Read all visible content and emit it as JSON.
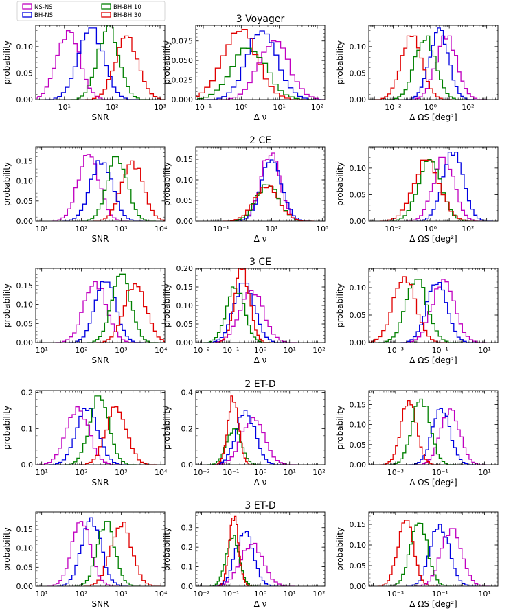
{
  "figure": {
    "row_titles": [
      "3 Voyager",
      "2 CE",
      "3 CE",
      "2 ET-D",
      "3 ET-D"
    ],
    "column_xlabels": [
      "SNR",
      "Δ ν",
      "Δ ΩS [deg²]"
    ],
    "ylabel": "probability",
    "legend": [
      {
        "name": "NS-NS",
        "color": "#c000c0"
      },
      {
        "name": "BH-NS",
        "color": "#0000e0"
      },
      {
        "name": "BH-BH 10",
        "color": "#008000"
      },
      {
        "name": "BH-BH 30",
        "color": "#e00000"
      }
    ]
  },
  "chart_data": [
    {
      "type": "histogram",
      "row": "3 Voyager",
      "xlabel": "SNR",
      "ylabel": "probability",
      "xscale": "log",
      "xlim_log10": [
        0.4,
        3.1
      ],
      "xticks_log10": [
        1,
        2,
        3
      ],
      "xtick_labels": [
        "10¹",
        "10²",
        "10³"
      ],
      "ylim": [
        0,
        0.14
      ],
      "yticks": [
        0,
        0.05,
        0.1
      ],
      "ytick_labels": [
        "0.00",
        "0.05",
        "0.10"
      ],
      "series": [
        {
          "name": "NS-NS",
          "center": 1.08,
          "width": 0.24,
          "peak": 0.13
        },
        {
          "name": "BH-NS",
          "center": 1.55,
          "width": 0.26,
          "peak": 0.135
        },
        {
          "name": "BH-BH 10",
          "center": 1.92,
          "width": 0.22,
          "peak": 0.14
        },
        {
          "name": "BH-BH 30",
          "center": 2.3,
          "width": 0.24,
          "peak": 0.12
        }
      ]
    },
    {
      "type": "histogram",
      "row": "3 Voyager",
      "xlabel": "Δ ν",
      "ylabel": "probability",
      "xscale": "log",
      "xlim_log10": [
        -1.2,
        2.2
      ],
      "xticks_log10": [
        -1,
        0,
        1,
        2
      ],
      "xtick_labels": [
        "10⁻¹",
        "10⁰",
        "10¹",
        "10²"
      ],
      "ylim": [
        0,
        0.095
      ],
      "yticks": [
        0,
        0.025,
        0.05,
        0.075
      ],
      "ytick_labels": [
        "0.000",
        "0.025",
        "0.050",
        "0.075"
      ],
      "series": [
        {
          "name": "NS-NS",
          "center": 0.85,
          "width": 0.4,
          "peak": 0.075
        },
        {
          "name": "BH-NS",
          "center": 0.55,
          "width": 0.4,
          "peak": 0.088
        },
        {
          "name": "BH-BH 10",
          "center": 0.2,
          "width": 0.45,
          "peak": 0.07
        },
        {
          "name": "BH-BH 30",
          "center": -0.05,
          "width": 0.45,
          "peak": 0.09
        }
      ]
    },
    {
      "type": "histogram",
      "row": "3 Voyager",
      "xlabel": "Δ ΩS [deg²]",
      "ylabel": "probability",
      "xscale": "log",
      "xlim_log10": [
        -3.3,
        3.6
      ],
      "xticks_log10": [
        -2,
        0,
        2
      ],
      "xtick_labels": [
        "10⁻²",
        "10⁰",
        "10²"
      ],
      "ylim": [
        0,
        0.14
      ],
      "yticks": [
        0,
        0.05,
        0.1
      ],
      "ytick_labels": [
        "0.00",
        "0.05",
        "0.10"
      ],
      "series": [
        {
          "name": "NS-NS",
          "center": 0.85,
          "width": 0.55,
          "peak": 0.12
        },
        {
          "name": "BH-NS",
          "center": 0.45,
          "width": 0.5,
          "peak": 0.135
        },
        {
          "name": "BH-BH 10",
          "center": -0.3,
          "width": 0.55,
          "peak": 0.12
        },
        {
          "name": "BH-BH 30",
          "center": -1.0,
          "width": 0.55,
          "peak": 0.12
        }
      ]
    },
    {
      "type": "histogram",
      "row": "2 CE",
      "xlabel": "SNR",
      "ylabel": "probability",
      "xscale": "log",
      "xlim_log10": [
        0.85,
        4.1
      ],
      "xticks_log10": [
        1,
        2,
        3,
        4
      ],
      "xtick_labels": [
        "10¹",
        "10²",
        "10³",
        "10⁴"
      ],
      "ylim": [
        0,
        0.185
      ],
      "yticks": [
        0,
        0.05,
        0.1,
        0.15
      ],
      "ytick_labels": [
        "0.00",
        "0.05",
        "0.10",
        "0.15"
      ],
      "series": [
        {
          "name": "NS-NS",
          "center": 2.18,
          "width": 0.26,
          "peak": 0.17
        },
        {
          "name": "BH-NS",
          "center": 2.5,
          "width": 0.27,
          "peak": 0.155
        },
        {
          "name": "BH-BH 10",
          "center": 2.9,
          "width": 0.25,
          "peak": 0.16
        },
        {
          "name": "BH-BH 30",
          "center": 3.28,
          "width": 0.27,
          "peak": 0.15
        }
      ]
    },
    {
      "type": "histogram",
      "row": "2 CE",
      "xlabel": "Δ ν",
      "ylabel": "probability",
      "xscale": "log",
      "xlim_log10": [
        -2.0,
        3.1
      ],
      "xticks_log10": [
        -1,
        1,
        3
      ],
      "xtick_labels": [
        "10⁻¹",
        "10¹",
        "10³"
      ],
      "ylim": [
        0,
        0.18
      ],
      "yticks": [
        0,
        0.05,
        0.1,
        0.15
      ],
      "ytick_labels": [
        "0.00",
        "0.05",
        "0.10",
        "0.15"
      ],
      "series": [
        {
          "name": "NS-NS",
          "center": 0.95,
          "width": 0.38,
          "peak": 0.165
        },
        {
          "name": "BH-NS",
          "center": 1.0,
          "width": 0.4,
          "peak": 0.15
        },
        {
          "name": "BH-BH 10",
          "center": 0.85,
          "width": 0.45,
          "peak": 0.09
        },
        {
          "name": "BH-BH 30",
          "center": 0.8,
          "width": 0.48,
          "peak": 0.085
        }
      ]
    },
    {
      "type": "histogram",
      "row": "2 CE",
      "xlabel": "Δ ΩS [deg²]",
      "ylabel": "probability",
      "xscale": "log",
      "xlim_log10": [
        -3.3,
        3.6
      ],
      "xticks_log10": [
        -2,
        0,
        2
      ],
      "xtick_labels": [
        "10⁻²",
        "10⁰",
        "10²"
      ],
      "ylim": [
        0,
        0.14
      ],
      "yticks": [
        0,
        0.05,
        0.1
      ],
      "ytick_labels": [
        "0.00",
        "0.05",
        "0.10"
      ],
      "series": [
        {
          "name": "NS-NS",
          "center": 0.7,
          "width": 0.55,
          "peak": 0.12
        },
        {
          "name": "BH-NS",
          "center": 1.2,
          "width": 0.55,
          "peak": 0.13
        },
        {
          "name": "BH-BH 10",
          "center": -0.05,
          "width": 0.6,
          "peak": 0.12
        },
        {
          "name": "BH-BH 30",
          "center": -0.2,
          "width": 0.7,
          "peak": 0.115
        }
      ]
    },
    {
      "type": "histogram",
      "row": "3 CE",
      "xlabel": "SNR",
      "ylabel": "probability",
      "xscale": "log",
      "xlim_log10": [
        0.85,
        4.1
      ],
      "xticks_log10": [
        1,
        2,
        3,
        4
      ],
      "xtick_labels": [
        "10¹",
        "10²",
        "10³",
        "10⁴"
      ],
      "ylim": [
        0,
        0.195
      ],
      "yticks": [
        0,
        0.05,
        0.1,
        0.15
      ],
      "ytick_labels": [
        "0.00",
        "0.05",
        "0.10",
        "0.15"
      ],
      "series": [
        {
          "name": "NS-NS",
          "center": 2.35,
          "width": 0.28,
          "peak": 0.16
        },
        {
          "name": "BH-NS",
          "center": 2.6,
          "width": 0.25,
          "peak": 0.17
        },
        {
          "name": "BH-BH 10",
          "center": 3.0,
          "width": 0.24,
          "peak": 0.18
        },
        {
          "name": "BH-BH 30",
          "center": 3.35,
          "width": 0.27,
          "peak": 0.16
        }
      ]
    },
    {
      "type": "histogram",
      "row": "3 CE",
      "xlabel": "Δ ν",
      "ylabel": "probability",
      "xscale": "log",
      "xlim_log10": [
        -2.2,
        2.2
      ],
      "xticks_log10": [
        -2,
        -1,
        0,
        1,
        2
      ],
      "xtick_labels": [
        "10⁻²",
        "10⁻¹",
        "10⁰",
        "10¹",
        "10²"
      ],
      "ylim": [
        0,
        0.2
      ],
      "yticks": [
        0,
        0.05,
        0.1,
        0.15,
        0.2
      ],
      "ytick_labels": [
        "0.00",
        "0.05",
        "0.10",
        "0.15",
        "0.20"
      ],
      "series": [
        {
          "name": "NS-NS",
          "center": -0.3,
          "width": 0.4,
          "peak": 0.14
        },
        {
          "name": "BH-NS",
          "center": -0.55,
          "width": 0.35,
          "peak": 0.16
        },
        {
          "name": "BH-BH 10",
          "center": -0.85,
          "width": 0.3,
          "peak": 0.15
        },
        {
          "name": "BH-BH 30",
          "center": -0.62,
          "width": 0.25,
          "peak": 0.2
        }
      ]
    },
    {
      "type": "histogram",
      "row": "3 CE",
      "xlabel": "Δ ΩS [deg²]",
      "ylabel": "probability",
      "xscale": "log",
      "xlim_log10": [
        -4.2,
        1.6
      ],
      "xticks_log10": [
        -3,
        -1,
        1
      ],
      "xtick_labels": [
        "10⁻³",
        "10⁻¹",
        "10¹"
      ],
      "ylim": [
        0,
        0.135
      ],
      "yticks": [
        0,
        0.05,
        0.1
      ],
      "ytick_labels": [
        "0.00",
        "0.05",
        "0.10"
      ],
      "series": [
        {
          "name": "NS-NS",
          "center": -0.85,
          "width": 0.5,
          "peak": 0.115
        },
        {
          "name": "BH-NS",
          "center": -1.15,
          "width": 0.45,
          "peak": 0.11
        },
        {
          "name": "BH-BH 10",
          "center": -2.05,
          "width": 0.48,
          "peak": 0.115
        },
        {
          "name": "BH-BH 30",
          "center": -2.6,
          "width": 0.5,
          "peak": 0.12
        }
      ]
    },
    {
      "type": "histogram",
      "row": "2 ET-D",
      "xlabel": "SNR",
      "ylabel": "probability",
      "xscale": "log",
      "xlim_log10": [
        0.85,
        4.1
      ],
      "xticks_log10": [
        1,
        2,
        3,
        4
      ],
      "xtick_labels": [
        "10¹",
        "10²",
        "10³",
        "10⁴"
      ],
      "ylim": [
        0,
        0.205
      ],
      "yticks": [
        0,
        0.1,
        0.2
      ],
      "ytick_labels": [
        "0.0",
        "0.1",
        "0.2"
      ],
      "series": [
        {
          "name": "NS-NS",
          "center": 1.9,
          "width": 0.28,
          "peak": 0.16
        },
        {
          "name": "BH-NS",
          "center": 2.15,
          "width": 0.27,
          "peak": 0.155
        },
        {
          "name": "BH-BH 10",
          "center": 2.45,
          "width": 0.24,
          "peak": 0.19
        },
        {
          "name": "BH-BH 30",
          "center": 2.88,
          "width": 0.26,
          "peak": 0.16
        }
      ]
    },
    {
      "type": "histogram",
      "row": "2 ET-D",
      "xlabel": "Δ ν",
      "ylabel": "probability",
      "xscale": "log",
      "xlim_log10": [
        -2.2,
        2.2
      ],
      "xticks_log10": [
        -2,
        -1,
        0,
        1,
        2
      ],
      "xtick_labels": [
        "10⁻²",
        "10⁻¹",
        "10⁰",
        "10¹",
        "10²"
      ],
      "ylim": [
        0,
        0.41
      ],
      "yticks": [
        0,
        0.2,
        0.4
      ],
      "ytick_labels": [
        "0.0",
        "0.2",
        "0.4"
      ],
      "series": [
        {
          "name": "NS-NS",
          "center": -0.25,
          "width": 0.38,
          "peak": 0.26
        },
        {
          "name": "BH-NS",
          "center": -0.5,
          "width": 0.32,
          "peak": 0.3
        },
        {
          "name": "BH-BH 10",
          "center": -0.9,
          "width": 0.25,
          "peak": 0.2
        },
        {
          "name": "BH-BH 30",
          "center": -0.92,
          "width": 0.18,
          "peak": 0.38
        }
      ]
    },
    {
      "type": "histogram",
      "row": "2 ET-D",
      "xlabel": "Δ ΩS [deg²]",
      "ylabel": "probability",
      "xscale": "log",
      "xlim_log10": [
        -4.2,
        1.6
      ],
      "xticks_log10": [
        -3,
        -1,
        1
      ],
      "xtick_labels": [
        "10⁻³",
        "10⁻¹",
        "10¹"
      ],
      "ylim": [
        0,
        0.185
      ],
      "yticks": [
        0,
        0.05,
        0.1,
        0.15
      ],
      "ytick_labels": [
        "0.00",
        "0.05",
        "0.10",
        "0.15"
      ],
      "series": [
        {
          "name": "NS-NS",
          "center": -0.55,
          "width": 0.42,
          "peak": 0.14
        },
        {
          "name": "BH-NS",
          "center": -0.95,
          "width": 0.4,
          "peak": 0.14
        },
        {
          "name": "BH-BH 10",
          "center": -1.85,
          "width": 0.4,
          "peak": 0.165
        },
        {
          "name": "BH-BH 30",
          "center": -2.4,
          "width": 0.35,
          "peak": 0.16
        }
      ]
    },
    {
      "type": "histogram",
      "row": "3 ET-D",
      "xlabel": "SNR",
      "ylabel": "probability",
      "xscale": "log",
      "xlim_log10": [
        0.85,
        4.1
      ],
      "xticks_log10": [
        1,
        2,
        3,
        4
      ],
      "xtick_labels": [
        "10¹",
        "10²",
        "10³",
        "10⁴"
      ],
      "ylim": [
        0,
        0.195
      ],
      "yticks": [
        0,
        0.05,
        0.1,
        0.15
      ],
      "ytick_labels": [
        "0.00",
        "0.05",
        "0.10",
        "0.15"
      ],
      "series": [
        {
          "name": "NS-NS",
          "center": 2.0,
          "width": 0.24,
          "peak": 0.17
        },
        {
          "name": "BH-NS",
          "center": 2.25,
          "width": 0.24,
          "peak": 0.18
        },
        {
          "name": "BH-BH 10",
          "center": 2.62,
          "width": 0.22,
          "peak": 0.17
        },
        {
          "name": "BH-BH 30",
          "center": 3.0,
          "width": 0.26,
          "peak": 0.17
        }
      ]
    },
    {
      "type": "histogram",
      "row": "3 ET-D",
      "xlabel": "Δ ν",
      "ylabel": "probability",
      "xscale": "log",
      "xlim_log10": [
        -2.2,
        2.2
      ],
      "xticks_log10": [
        -2,
        -1,
        0,
        1,
        2
      ],
      "xtick_labels": [
        "10⁻²",
        "10⁻¹",
        "10⁰",
        "10¹",
        "10²"
      ],
      "ylim": [
        0,
        0.38
      ],
      "yticks": [
        0,
        0.1,
        0.2,
        0.3
      ],
      "ytick_labels": [
        "0.0",
        "0.1",
        "0.2",
        "0.3"
      ],
      "series": [
        {
          "name": "NS-NS",
          "center": -0.3,
          "width": 0.38,
          "peak": 0.22
        },
        {
          "name": "BH-NS",
          "center": -0.55,
          "width": 0.3,
          "peak": 0.28
        },
        {
          "name": "BH-BH 10",
          "center": -0.95,
          "width": 0.22,
          "peak": 0.26
        },
        {
          "name": "BH-BH 30",
          "center": -0.9,
          "width": 0.16,
          "peak": 0.36
        }
      ]
    },
    {
      "type": "histogram",
      "row": "3 ET-D",
      "xlabel": "Δ ΩS [deg²]",
      "ylabel": "probability",
      "xscale": "log",
      "xlim_log10": [
        -4.2,
        1.6
      ],
      "xticks_log10": [
        -3,
        -1,
        1
      ],
      "xtick_labels": [
        "10⁻³",
        "10⁻¹",
        "10¹"
      ],
      "ylim": [
        0,
        0.18
      ],
      "yticks": [
        0,
        0.05,
        0.1,
        0.15
      ],
      "ytick_labels": [
        "0.00",
        "0.05",
        "0.10",
        "0.15"
      ],
      "series": [
        {
          "name": "NS-NS",
          "center": -0.5,
          "width": 0.45,
          "peak": 0.14
        },
        {
          "name": "BH-NS",
          "center": -1.0,
          "width": 0.42,
          "peak": 0.15
        },
        {
          "name": "BH-BH 10",
          "center": -1.95,
          "width": 0.38,
          "peak": 0.16
        },
        {
          "name": "BH-BH 30",
          "center": -2.55,
          "width": 0.35,
          "peak": 0.16
        }
      ]
    }
  ]
}
